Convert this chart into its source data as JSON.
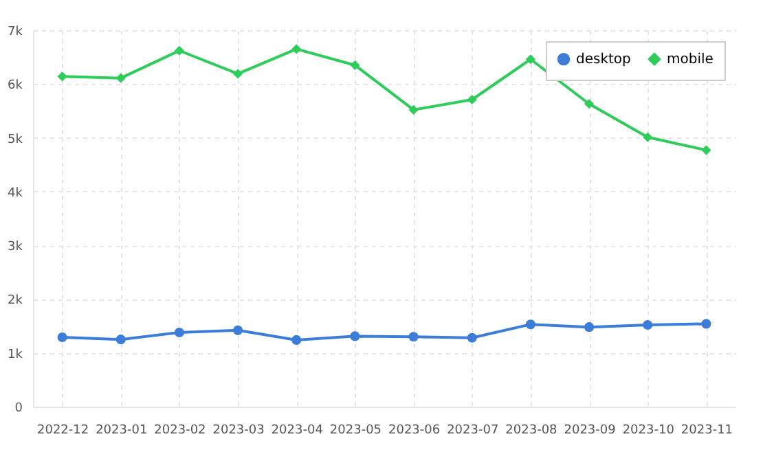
{
  "chart_data": {
    "type": "line",
    "categories": [
      "2022-12",
      "2023-01",
      "2023-02",
      "2023-03",
      "2023-04",
      "2023-05",
      "2023-06",
      "2023-07",
      "2023-08",
      "2023-09",
      "2023-10",
      "2023-11"
    ],
    "series": [
      {
        "name": "desktop",
        "color": "#3b7dd8",
        "marker": "circle",
        "values": [
          1290,
          1250,
          1380,
          1420,
          1240,
          1310,
          1300,
          1280,
          1530,
          1480,
          1520,
          1540
        ]
      },
      {
        "name": "mobile",
        "color": "#2ecc5a",
        "marker": "diamond",
        "values": [
          6140,
          6110,
          6620,
          6190,
          6650,
          6350,
          5520,
          5710,
          6460,
          5630,
          5010,
          4770
        ]
      }
    ],
    "ylim": [
      0,
      7000
    ],
    "yticks": [
      0,
      {
        "value": 1000,
        "label": "1k"
      },
      {
        "value": 2000,
        "label": "2k"
      },
      {
        "value": 3000,
        "label": "3k"
      },
      {
        "value": 4000,
        "label": "4k"
      },
      {
        "value": 5000,
        "label": "5k"
      },
      {
        "value": 6000,
        "label": "6k"
      },
      {
        "value": 7000,
        "label": "7k"
      }
    ],
    "grid": true,
    "legend": "top right",
    "line_style": "solid"
  }
}
